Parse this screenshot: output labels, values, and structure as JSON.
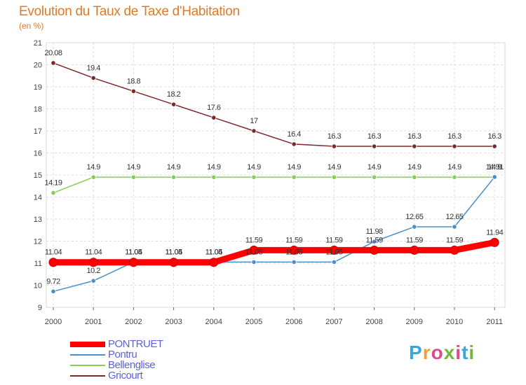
{
  "title": "Evolution du Taux de Taxe d'Habitation",
  "subtitle": "(en %)",
  "logo": "Proxiti",
  "chart_data": {
    "type": "line",
    "categories": [
      "2000",
      "2001",
      "2002",
      "2003",
      "2004",
      "2005",
      "2006",
      "2007",
      "2008",
      "2009",
      "2010",
      "2011"
    ],
    "ylim": [
      9,
      21
    ],
    "yticks": [
      9,
      10,
      11,
      12,
      13,
      14,
      15,
      16,
      17,
      18,
      19,
      20,
      21
    ],
    "grid": true,
    "legend_position": "bottom-left",
    "series": [
      {
        "name": "PONTRUET",
        "color": "#ff0000",
        "values": [
          11.04,
          11.04,
          11.04,
          11.04,
          11.04,
          11.59,
          11.59,
          11.59,
          11.59,
          11.59,
          11.59,
          11.94
        ],
        "labels": [
          "11.04",
          "11.04",
          "11.04",
          "11.04",
          "11.04",
          "11.59",
          "11.59",
          "11.59",
          "11.59",
          "11.59",
          "11.59",
          "11.94"
        ]
      },
      {
        "name": "Pontru",
        "color": "#4a90c8",
        "values": [
          9.72,
          10.2,
          11.05,
          11.05,
          11.05,
          11.05,
          11.05,
          11.05,
          11.98,
          12.65,
          12.65,
          14.91
        ],
        "labels": [
          "9.72",
          "10.2",
          "11.05",
          "11.05",
          "11.05",
          "11.05",
          "11.05",
          "11.05",
          "11.98",
          "12.65",
          "12.65",
          "14.91"
        ]
      },
      {
        "name": "Bellenglise",
        "color": "#88cc55",
        "values": [
          14.19,
          14.9,
          14.9,
          14.9,
          14.9,
          14.9,
          14.9,
          14.9,
          14.9,
          14.9,
          14.9,
          14.9
        ],
        "labels": [
          "14.19",
          "14.9",
          "14.9",
          "14.9",
          "14.9",
          "14.9",
          "14.9",
          "14.9",
          "14.9",
          "14.9",
          "14.9",
          "14.9"
        ]
      },
      {
        "name": "Gricourt",
        "color": "#7a2a2a",
        "values": [
          20.08,
          19.4,
          18.8,
          18.2,
          17.6,
          17,
          16.4,
          16.3,
          16.3,
          16.3,
          16.3,
          16.3
        ],
        "labels": [
          "20.08",
          "19.4",
          "18.8",
          "18.2",
          "17.6",
          "17",
          "16.4",
          "16.3",
          "16.3",
          "16.3",
          "16.3",
          "16.3"
        ]
      }
    ]
  }
}
